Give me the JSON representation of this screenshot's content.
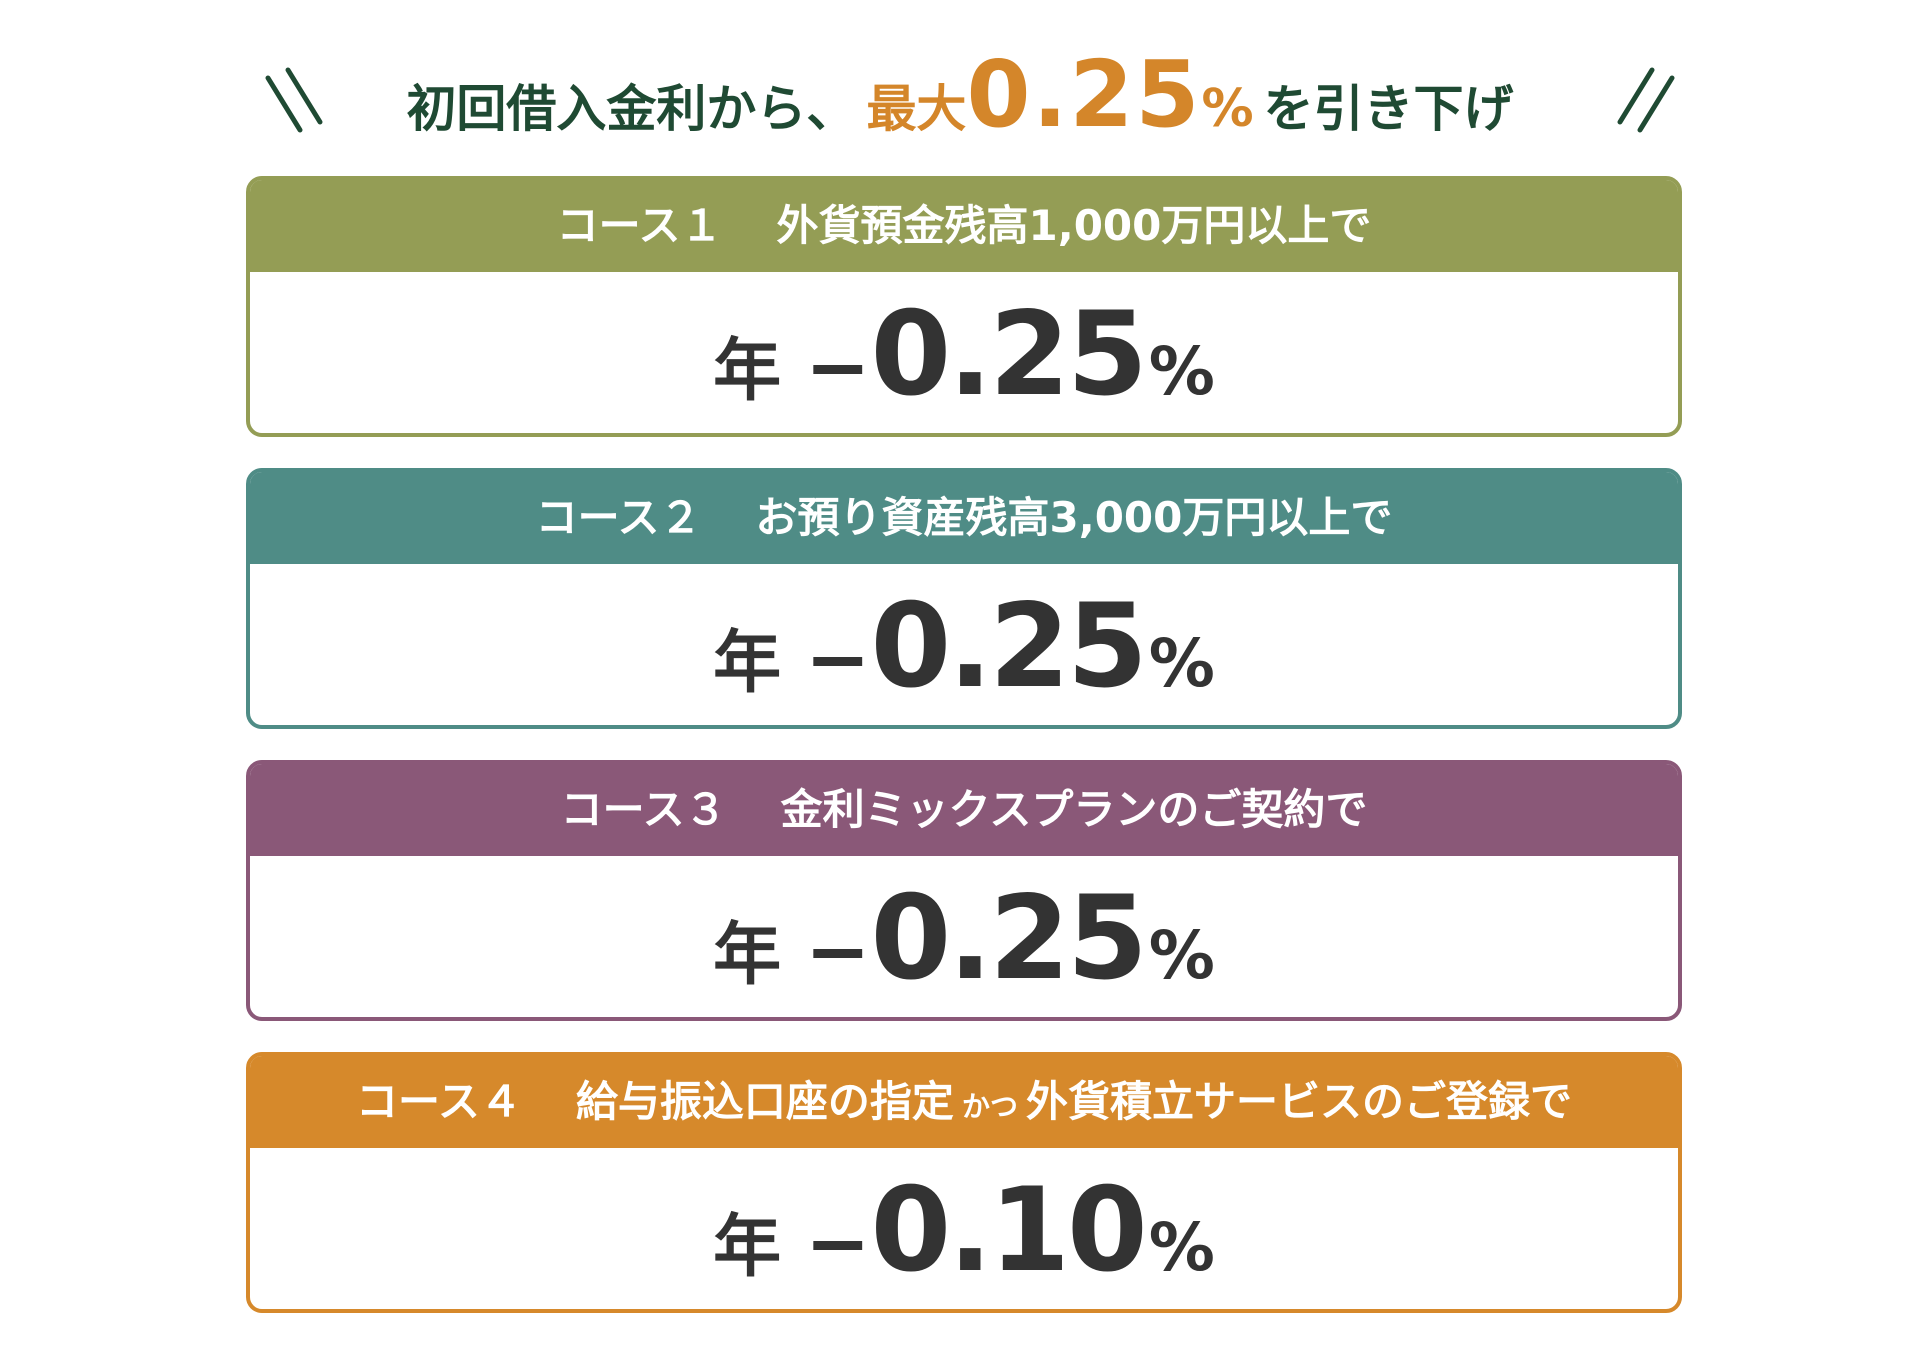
{
  "header": {
    "lead": "初回借入金利から、",
    "max_label": "最大",
    "max_value": "0.25",
    "max_unit": "%",
    "tail": "を引き下げ"
  },
  "cards": [
    {
      "label": "コース１",
      "title": "外貨預金残高1,000万円以上で",
      "prefix": "年",
      "sign": "−",
      "value": "0.25",
      "unit": "%"
    },
    {
      "label": "コース２",
      "title": "お預り資産残高3,000万円以上で",
      "prefix": "年",
      "sign": "−",
      "value": "0.25",
      "unit": "%"
    },
    {
      "label": "コース３",
      "title": "金利ミックスプランのご契約で",
      "prefix": "年",
      "sign": "−",
      "value": "0.25",
      "unit": "%"
    },
    {
      "label": "コース４",
      "title": "給与振込口座の指定",
      "connector": "かつ",
      "title_after": "外貨積立サービスのご登録で",
      "prefix": "年",
      "sign": "−",
      "value": "0.10",
      "unit": "%"
    }
  ]
}
